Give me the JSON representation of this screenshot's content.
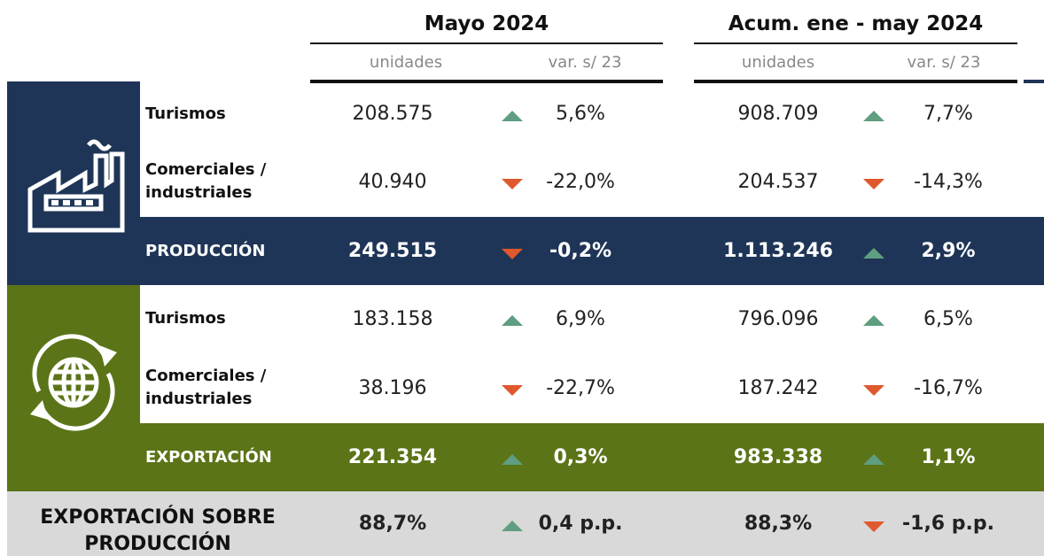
{
  "header": {
    "groups": [
      "Mayo 2024",
      "Acum. ene - may 2024"
    ],
    "subheaders": [
      "unidades",
      "var. s/ 23",
      "unidades",
      "var. s/ 23"
    ]
  },
  "sections": [
    {
      "rows": [
        {
          "label": "Turismos",
          "values": [
            "208.575",
            "5,6%",
            "908.709",
            "7,7%"
          ]
        },
        {
          "label": "Comerciales / industriales",
          "values": [
            "40.940",
            "-22,0%",
            "204.537",
            "-14,3%"
          ]
        }
      ],
      "total": {
        "label": "PRODUCCIÓN",
        "values": [
          "249.515",
          "-0,2%",
          "1.113.246",
          "2,9%"
        ]
      }
    },
    {
      "rows": [
        {
          "label": "Turismos",
          "values": [
            "183.158",
            "6,9%",
            "796.096",
            "6,5%"
          ]
        },
        {
          "label": "Comerciales / industriales",
          "values": [
            "38.196",
            "-22,7%",
            "187.242",
            "-16,7%"
          ]
        }
      ],
      "total": {
        "label": "EXPORTACIÓN",
        "values": [
          "221.354",
          "0,3%",
          "983.338",
          "1,1%"
        ]
      }
    }
  ],
  "footer": {
    "label": "EXPORTACIÓN SOBRE PRODUCCIÓN",
    "values": [
      "88,7%",
      "0,4 p.p.",
      "88,3%",
      "-1,6 p.p."
    ]
  }
}
